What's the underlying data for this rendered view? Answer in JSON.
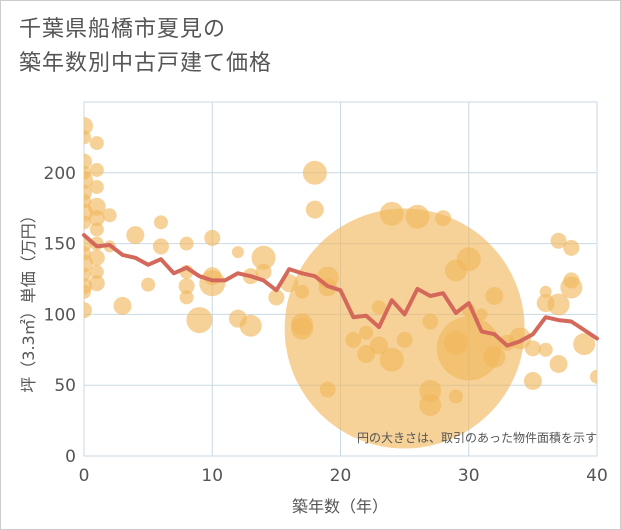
{
  "title_line1": "千葉県船橋市夏見の",
  "title_line2": "築年数別中古戸建て価格",
  "chart_data": {
    "type": "scatter",
    "xlabel": "築年数（年）",
    "ylabel": "坪（3.3㎡）単価（万円）",
    "xlim": [
      0,
      40
    ],
    "ylim": [
      0,
      250
    ],
    "xticks": [
      "0",
      "10",
      "20",
      "30",
      "40"
    ],
    "yticks": [
      "0",
      "50",
      "100",
      "150",
      "200"
    ],
    "grid": true,
    "note": "円の大きさは、取引のあった物件面積を示す",
    "colors": {
      "bubble": "#f1b75a",
      "line": "#d4685a",
      "grid": "#c8d9e4"
    },
    "bubbles": [
      {
        "x": 0,
        "y": 233,
        "s": 9
      },
      {
        "x": 0,
        "y": 225,
        "s": 7
      },
      {
        "x": 0,
        "y": 208,
        "s": 8
      },
      {
        "x": 0,
        "y": 200,
        "s": 7
      },
      {
        "x": 0,
        "y": 195,
        "s": 9
      },
      {
        "x": 0,
        "y": 186,
        "s": 8
      },
      {
        "x": 0,
        "y": 180,
        "s": 7
      },
      {
        "x": 0,
        "y": 172,
        "s": 9
      },
      {
        "x": 0,
        "y": 165,
        "s": 7
      },
      {
        "x": 0,
        "y": 150,
        "s": 8
      },
      {
        "x": 0,
        "y": 143,
        "s": 7
      },
      {
        "x": 0,
        "y": 136,
        "s": 9
      },
      {
        "x": 0,
        "y": 128,
        "s": 7
      },
      {
        "x": 0,
        "y": 120,
        "s": 8
      },
      {
        "x": 0,
        "y": 116,
        "s": 7
      },
      {
        "x": 0,
        "y": 103,
        "s": 8
      },
      {
        "x": 1,
        "y": 221,
        "s": 7
      },
      {
        "x": 1,
        "y": 202,
        "s": 7
      },
      {
        "x": 1,
        "y": 190,
        "s": 7
      },
      {
        "x": 1,
        "y": 176,
        "s": 9
      },
      {
        "x": 1,
        "y": 168,
        "s": 8
      },
      {
        "x": 1,
        "y": 160,
        "s": 7
      },
      {
        "x": 1,
        "y": 150,
        "s": 7
      },
      {
        "x": 1,
        "y": 140,
        "s": 8
      },
      {
        "x": 1,
        "y": 130,
        "s": 7
      },
      {
        "x": 1,
        "y": 122,
        "s": 8
      },
      {
        "x": 2,
        "y": 170,
        "s": 7
      },
      {
        "x": 2,
        "y": 148,
        "s": 6
      },
      {
        "x": 3,
        "y": 106,
        "s": 9
      },
      {
        "x": 4,
        "y": 156,
        "s": 9
      },
      {
        "x": 5,
        "y": 121,
        "s": 7
      },
      {
        "x": 6,
        "y": 165,
        "s": 7
      },
      {
        "x": 6,
        "y": 148,
        "s": 8
      },
      {
        "x": 8,
        "y": 150,
        "s": 7
      },
      {
        "x": 8,
        "y": 130,
        "s": 7
      },
      {
        "x": 8,
        "y": 120,
        "s": 8
      },
      {
        "x": 8,
        "y": 112,
        "s": 7
      },
      {
        "x": 9,
        "y": 96,
        "s": 13
      },
      {
        "x": 10,
        "y": 154,
        "s": 8
      },
      {
        "x": 10,
        "y": 127,
        "s": 9
      },
      {
        "x": 10,
        "y": 122,
        "s": 13
      },
      {
        "x": 12,
        "y": 144,
        "s": 6
      },
      {
        "x": 12,
        "y": 97,
        "s": 9
      },
      {
        "x": 13,
        "y": 127,
        "s": 8
      },
      {
        "x": 13,
        "y": 92,
        "s": 11
      },
      {
        "x": 14,
        "y": 140,
        "s": 12
      },
      {
        "x": 14,
        "y": 130,
        "s": 8
      },
      {
        "x": 15,
        "y": 112,
        "s": 8
      },
      {
        "x": 16,
        "y": 122,
        "s": 9
      },
      {
        "x": 17,
        "y": 116,
        "s": 7
      },
      {
        "x": 17,
        "y": 93,
        "s": 11
      },
      {
        "x": 17,
        "y": 90,
        "s": 11
      },
      {
        "x": 18,
        "y": 200,
        "s": 12
      },
      {
        "x": 18,
        "y": 174,
        "s": 9
      },
      {
        "x": 19,
        "y": 126,
        "s": 11
      },
      {
        "x": 19,
        "y": 119,
        "s": 9
      },
      {
        "x": 19,
        "y": 47,
        "s": 8
      },
      {
        "x": 21,
        "y": 82,
        "s": 8
      },
      {
        "x": 22,
        "y": 87,
        "s": 7
      },
      {
        "x": 22,
        "y": 72,
        "s": 9
      },
      {
        "x": 23,
        "y": 78,
        "s": 9
      },
      {
        "x": 23,
        "y": 105,
        "s": 7
      },
      {
        "x": 24,
        "y": 171,
        "s": 12
      },
      {
        "x": 24,
        "y": 68,
        "s": 12
      },
      {
        "x": 25,
        "y": 90,
        "s": 120
      },
      {
        "x": 25,
        "y": 82,
        "s": 8
      },
      {
        "x": 26,
        "y": 169,
        "s": 12
      },
      {
        "x": 27,
        "y": 95,
        "s": 8
      },
      {
        "x": 27,
        "y": 46,
        "s": 11
      },
      {
        "x": 27,
        "y": 36,
        "s": 11
      },
      {
        "x": 28,
        "y": 168,
        "s": 8
      },
      {
        "x": 29,
        "y": 131,
        "s": 11
      },
      {
        "x": 29,
        "y": 80,
        "s": 12
      },
      {
        "x": 29,
        "y": 42,
        "s": 7
      },
      {
        "x": 30,
        "y": 139,
        "s": 12
      },
      {
        "x": 30,
        "y": 76,
        "s": 32
      },
      {
        "x": 30,
        "y": 103,
        "s": 7
      },
      {
        "x": 31,
        "y": 100,
        "s": 6
      },
      {
        "x": 32,
        "y": 113,
        "s": 9
      },
      {
        "x": 32,
        "y": 70,
        "s": 11
      },
      {
        "x": 33,
        "y": 80,
        "s": 8
      },
      {
        "x": 34,
        "y": 83,
        "s": 11
      },
      {
        "x": 35,
        "y": 76,
        "s": 8
      },
      {
        "x": 35,
        "y": 53,
        "s": 9
      },
      {
        "x": 36,
        "y": 116,
        "s": 6
      },
      {
        "x": 36,
        "y": 108,
        "s": 9
      },
      {
        "x": 36,
        "y": 75,
        "s": 7
      },
      {
        "x": 37,
        "y": 152,
        "s": 8
      },
      {
        "x": 37,
        "y": 107,
        "s": 11
      },
      {
        "x": 37,
        "y": 65,
        "s": 9
      },
      {
        "x": 38,
        "y": 147,
        "s": 8
      },
      {
        "x": 38,
        "y": 124,
        "s": 8
      },
      {
        "x": 38,
        "y": 119,
        "s": 11
      },
      {
        "x": 39,
        "y": 79,
        "s": 11
      },
      {
        "x": 40,
        "y": 56,
        "s": 7
      }
    ],
    "line": {
      "x": [
        0,
        1,
        2,
        3,
        4,
        5,
        6,
        7,
        8,
        9,
        10,
        11,
        12,
        13,
        14,
        15,
        16,
        17,
        18,
        19,
        20,
        21,
        22,
        23,
        24,
        25,
        26,
        27,
        28,
        29,
        30,
        31,
        32,
        33,
        34,
        35,
        36,
        37,
        38,
        39,
        40
      ],
      "y": [
        156,
        148,
        149,
        142,
        140,
        135,
        139,
        129,
        133,
        127,
        124,
        124,
        129,
        127,
        124,
        117,
        132,
        129,
        127,
        120,
        117,
        98,
        99,
        91,
        110,
        100,
        118,
        113,
        115,
        101,
        108,
        88,
        86,
        78,
        81,
        86,
        98,
        96,
        95,
        89,
        83
      ]
    }
  }
}
